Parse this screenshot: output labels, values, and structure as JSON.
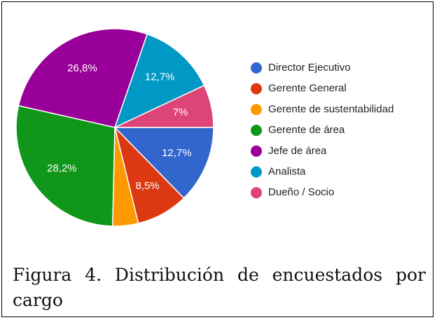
{
  "chart_data": {
    "type": "pie",
    "categories": [
      "Director Ejecutivo",
      "Gerente General",
      "Gerente de sustentabilidad",
      "Gerente de área",
      "Jefe de área",
      "Analista",
      "Dueño / Socio"
    ],
    "values": [
      12.7,
      8.5,
      4.2,
      28.2,
      26.8,
      12.7,
      7
    ],
    "value_labels": [
      "12,7%",
      "8,5%",
      null,
      "28,2%",
      "26,8%",
      "12,7%",
      "7%"
    ],
    "colors": [
      "#3366cc",
      "#dc3912",
      "#ff9900",
      "#109618",
      "#990099",
      "#0099c6",
      "#dd4477"
    ],
    "legend": "right",
    "caption": "Figura 4. Distribución de encuestados por cargo"
  }
}
